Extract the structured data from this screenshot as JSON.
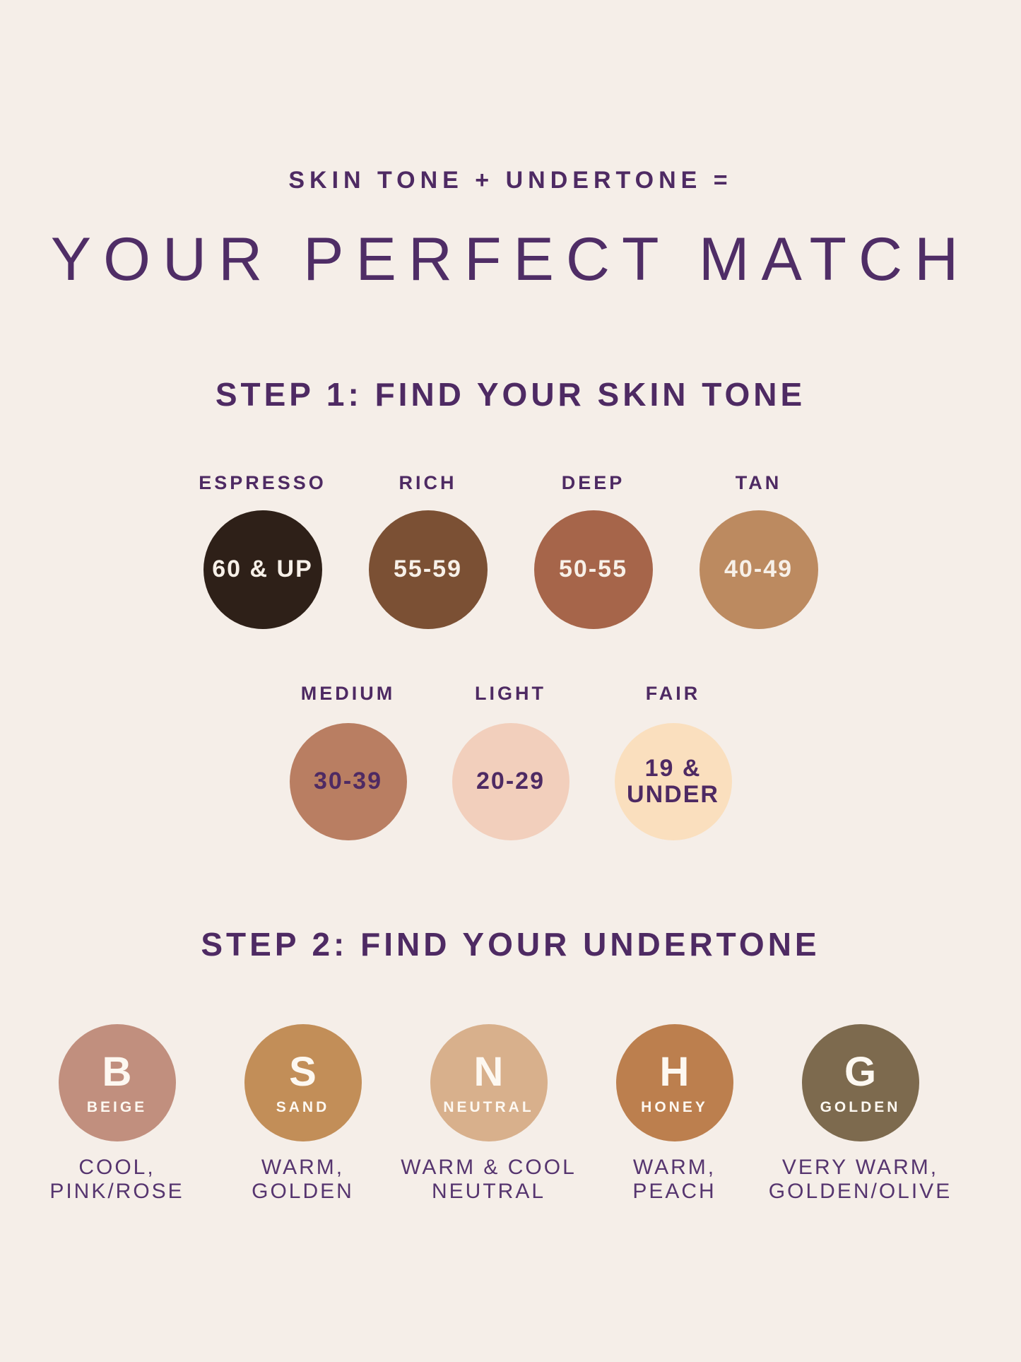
{
  "page": {
    "background": "#f5eee8",
    "accent_purple": "#4e2a63",
    "description_purple": "#56356f"
  },
  "header": {
    "eyebrow": "SKIN TONE + UNDERTONE =",
    "title": "YOUR PERFECT MATCH"
  },
  "step1": {
    "heading": "STEP 1: FIND YOUR SKIN TONE",
    "tones": [
      {
        "label": "ESPRESSO",
        "range": "60 & UP",
        "color": "#2e2018",
        "range_color": "#f7f0e8"
      },
      {
        "label": "RICH",
        "range": "55-59",
        "color": "#7b5034",
        "range_color": "#f7f0e8"
      },
      {
        "label": "DEEP",
        "range": "50-55",
        "color": "#a6654a",
        "range_color": "#f7f0e8"
      },
      {
        "label": "TAN",
        "range": "40-49",
        "color": "#bc8a60",
        "range_color": "#f7f0e8"
      },
      {
        "label": "MEDIUM",
        "range": "30-39",
        "color": "#b97e62",
        "range_color": "#4e2a63"
      },
      {
        "label": "LIGHT",
        "range": "20-29",
        "color": "#f2cfbc",
        "range_color": "#4e2a63"
      },
      {
        "label": "FAIR",
        "range": "19 &\nUNDER",
        "color": "#fadfbe",
        "range_color": "#4e2a63"
      }
    ]
  },
  "step2": {
    "heading": "STEP 2: FIND YOUR UNDERTONE",
    "items": [
      {
        "letter": "B",
        "name": "BEIGE",
        "color": "#c18f7e",
        "description": "COOL,\nPINK/ROSE"
      },
      {
        "letter": "S",
        "name": "SAND",
        "color": "#c28e58",
        "description": "WARM,\nGOLDEN"
      },
      {
        "letter": "N",
        "name": "NEUTRAL",
        "color": "#d8b08c",
        "description": "WARM & COOL\nNEUTRAL"
      },
      {
        "letter": "H",
        "name": "HONEY",
        "color": "#bc7f4e",
        "description": "WARM,\nPEACH"
      },
      {
        "letter": "G",
        "name": "GOLDEN",
        "color": "#7d6a4e",
        "description": "VERY WARM,\nGOLDEN/OLIVE"
      }
    ]
  }
}
